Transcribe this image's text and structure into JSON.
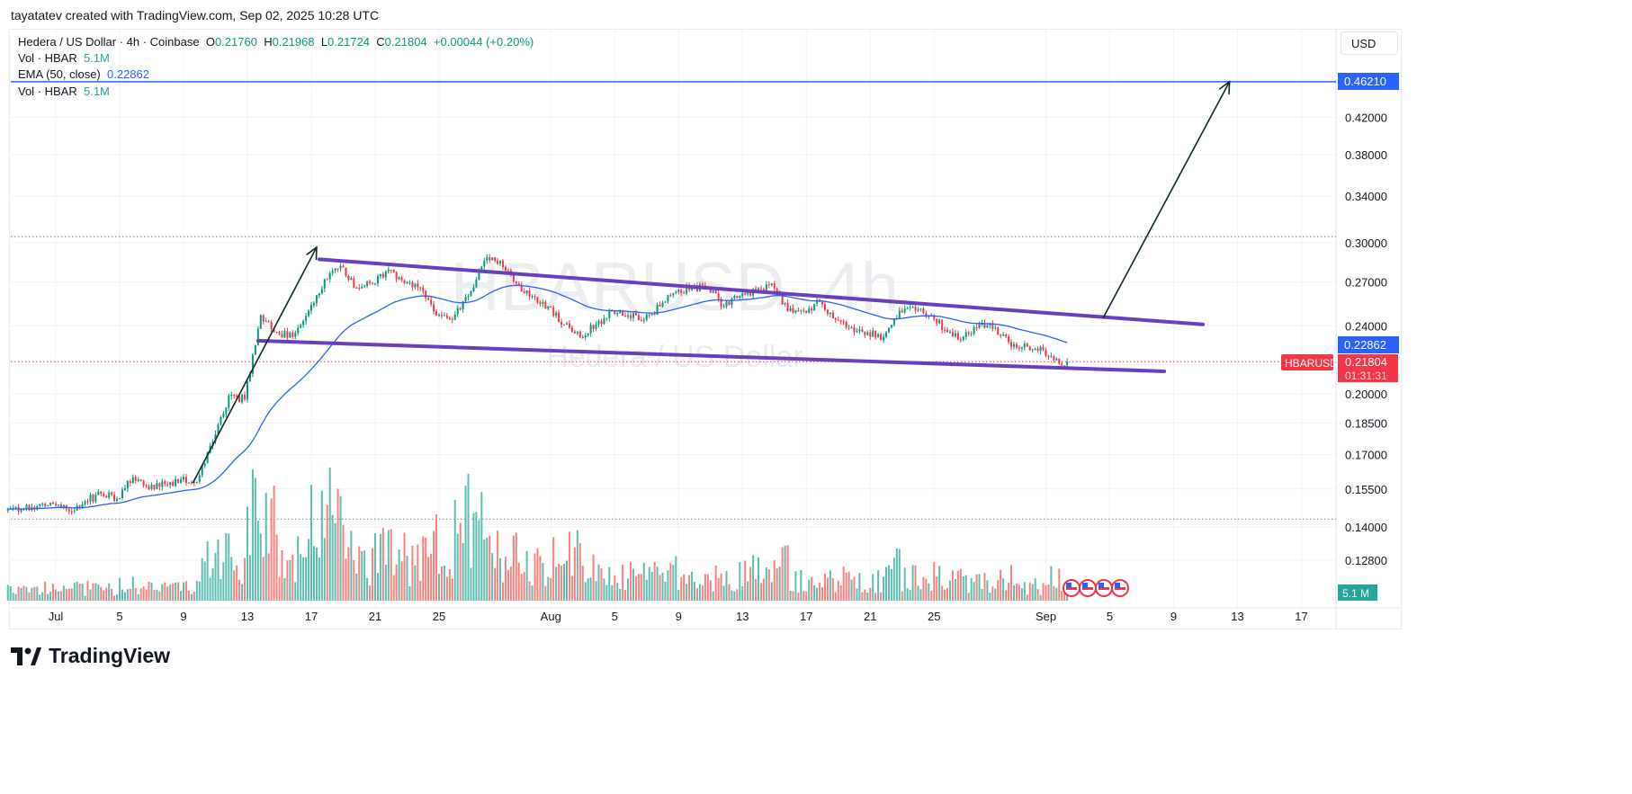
{
  "credit": "tayatatev created with TradingView.com, Sep 02, 2025 10:28 UTC",
  "legend": {
    "symbol": "Hedera / US Dollar · 4h · Coinbase",
    "o_label": "O",
    "o": "0.21760",
    "h_label": "H",
    "h": "0.21968",
    "l_label": "L",
    "l": "0.21724",
    "c_label": "C",
    "c": "0.21804",
    "change": "+0.00044 (+0.20%)",
    "vol1_label": "Vol · HBAR",
    "vol1": "5.1M",
    "ema_label": "EMA (50, close)",
    "ema": "0.22862",
    "vol2_label": "Vol · HBAR",
    "vol2": "5.1M"
  },
  "currency_button": "USD",
  "watermark": {
    "title": "HBARUSD, 4h",
    "subtitle": "Hedera / US Dollar"
  },
  "logo_text": "TradingView",
  "colors": {
    "up": "#089981",
    "down": "#f23645",
    "vol_up": "#5ebdb2",
    "vol_down": "#f7827f",
    "ema": "#2962ff",
    "channel": "#6a3fbf",
    "target": "#2962ff",
    "arrow": "#0b2a22"
  },
  "chart_data": {
    "type": "candlestick",
    "symbol": "HBARUSD",
    "interval": "4h",
    "y_scale": "log",
    "ylim": [
      0.112,
      0.47
    ],
    "grid": true,
    "y_ticks": [
      "0.42000",
      "0.38000",
      "0.34000",
      "0.30000",
      "0.27000",
      "0.24000",
      "0.20000",
      "0.18500",
      "0.17000",
      "0.15500",
      "0.14000",
      "0.12800"
    ],
    "x_ticks": [
      {
        "label": "Jul",
        "date": "2025-07-01"
      },
      {
        "label": "5",
        "date": "2025-07-05"
      },
      {
        "label": "9",
        "date": "2025-07-09"
      },
      {
        "label": "13",
        "date": "2025-07-13"
      },
      {
        "label": "17",
        "date": "2025-07-17"
      },
      {
        "label": "21",
        "date": "2025-07-21"
      },
      {
        "label": "25",
        "date": "2025-07-25"
      },
      {
        "label": "Aug",
        "date": "2025-08-01"
      },
      {
        "label": "5",
        "date": "2025-08-05"
      },
      {
        "label": "9",
        "date": "2025-08-09"
      },
      {
        "label": "13",
        "date": "2025-08-13"
      },
      {
        "label": "17",
        "date": "2025-08-17"
      },
      {
        "label": "21",
        "date": "2025-08-21"
      },
      {
        "label": "25",
        "date": "2025-08-25"
      },
      {
        "label": "Sep",
        "date": "2025-09-01"
      },
      {
        "label": "5",
        "date": "2025-09-05"
      },
      {
        "label": "9",
        "date": "2025-09-09"
      },
      {
        "label": "13",
        "date": "2025-09-13"
      },
      {
        "label": "17",
        "date": "2025-09-17"
      }
    ],
    "start_date": "2025-06-28",
    "daily_close": [
      0.147,
      0.148,
      0.149,
      0.146,
      0.15,
      0.153,
      0.151,
      0.16,
      0.155,
      0.157,
      0.159,
      0.158,
      0.176,
      0.199,
      0.197,
      0.247,
      0.236,
      0.233,
      0.25,
      0.272,
      0.282,
      0.266,
      0.269,
      0.279,
      0.269,
      0.266,
      0.247,
      0.244,
      0.26,
      0.286,
      0.286,
      0.269,
      0.26,
      0.253,
      0.241,
      0.233,
      0.241,
      0.25,
      0.247,
      0.244,
      0.253,
      0.263,
      0.266,
      0.266,
      0.253,
      0.26,
      0.263,
      0.269,
      0.25,
      0.25,
      0.256,
      0.244,
      0.239,
      0.236,
      0.233,
      0.25,
      0.25,
      0.247,
      0.236,
      0.233,
      0.241,
      0.239,
      0.227,
      0.227,
      0.225,
      0.217,
      0.21804
    ],
    "daily_volume_m": [
      4,
      4,
      5,
      4,
      5,
      6,
      5,
      7,
      5,
      5,
      5,
      6,
      15,
      20,
      15,
      45,
      35,
      20,
      18,
      30,
      45,
      20,
      15,
      20,
      18,
      15,
      22,
      20,
      35,
      28,
      20,
      18,
      15,
      15,
      20,
      18,
      12,
      12,
      10,
      10,
      10,
      12,
      10,
      8,
      10,
      10,
      12,
      12,
      15,
      8,
      7,
      9,
      9,
      8,
      8,
      15,
      9,
      8,
      10,
      9,
      8,
      7,
      9,
      6,
      6,
      9,
      5.1
    ],
    "last": {
      "price": "0.21804",
      "countdown": "01:31:31",
      "label": "HBARUSD",
      "volume": "5.1 M"
    },
    "ema": {
      "period": 50,
      "value": "0.22862"
    },
    "levels": [
      {
        "kind": "target",
        "price": 0.4621,
        "label": "0.46210"
      },
      {
        "kind": "dotted-high",
        "price": 0.305
      },
      {
        "kind": "dotted-low",
        "price": 0.143
      }
    ],
    "drawings": [
      {
        "kind": "channel-upper",
        "from": [
          "2025-07-17 12:00",
          0.287
        ],
        "to": [
          "2025-09-10 20:00",
          0.241
        ]
      },
      {
        "kind": "channel-lower",
        "from": [
          "2025-07-13 16:00",
          0.2307
        ],
        "to": [
          "2025-09-08 10:00",
          0.2125
        ]
      },
      {
        "kind": "arrow",
        "from": [
          "2025-07-09 14:00",
          0.1575
        ],
        "to": [
          "2025-07-17 08:00",
          0.2964
        ]
      },
      {
        "kind": "arrow",
        "from": [
          "2025-09-04 14:00",
          0.2452
        ],
        "to": [
          "2025-09-12 12:00",
          0.4621
        ]
      }
    ],
    "events": [
      {
        "icon": "us-flag-icon"
      },
      {
        "icon": "us-flag-icon"
      },
      {
        "icon": "us-flag-icon"
      },
      {
        "icon": "us-flag-icon"
      }
    ]
  }
}
